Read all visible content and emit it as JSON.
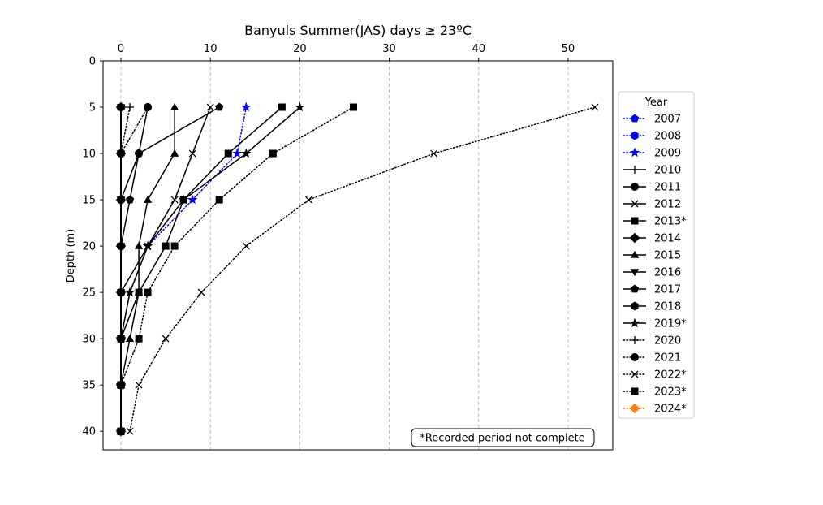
{
  "chart_data": {
    "type": "line",
    "title": "Banyuls Summer(JAS) days ≥ 23ºC",
    "xlabel": "",
    "ylabel": "Depth (m)",
    "xlim": [
      -2,
      55
    ],
    "ylim": [
      42,
      0
    ],
    "x_axis_position": "top",
    "y_inverted": true,
    "grid": "vertical dashed",
    "x_ticks": [
      0,
      10,
      20,
      30,
      40,
      50
    ],
    "y_ticks": [
      0,
      5,
      10,
      15,
      20,
      25,
      30,
      35,
      40
    ],
    "depths": [
      5,
      10,
      15,
      20,
      25,
      30,
      35,
      40
    ],
    "legend": {
      "title": "Year",
      "placement": "right-outside"
    },
    "annotation": "*Recorded period not complete",
    "series": [
      {
        "name": "2007",
        "color": "#0000ff",
        "dash": "dotted",
        "marker": "pentagon",
        "values": [
          0,
          0,
          0,
          0,
          0,
          0,
          0,
          0
        ]
      },
      {
        "name": "2008",
        "color": "#0000ff",
        "dash": "dotted",
        "marker": "hexagon",
        "values": [
          0,
          0,
          0,
          0,
          0,
          0,
          0,
          0
        ]
      },
      {
        "name": "2009",
        "color": "#0000ff",
        "dash": "dotted",
        "marker": "star",
        "values": [
          14,
          13,
          8,
          3,
          1,
          0,
          0,
          0
        ]
      },
      {
        "name": "2010",
        "color": "#000000",
        "dash": "solid",
        "marker": "plus",
        "values": [
          0,
          0,
          0,
          0,
          0,
          0,
          0,
          0
        ]
      },
      {
        "name": "2011",
        "color": "#000000",
        "dash": "solid",
        "marker": "circle",
        "values": [
          3,
          2,
          0,
          0,
          0,
          0,
          0,
          0
        ]
      },
      {
        "name": "2012",
        "color": "#000000",
        "dash": "solid",
        "marker": "x",
        "values": [
          10,
          8,
          6,
          3,
          0,
          0,
          0,
          0
        ]
      },
      {
        "name": "2013*",
        "color": "#000000",
        "dash": "solid",
        "marker": "square",
        "values": [
          18,
          12,
          7,
          5,
          2,
          0,
          0,
          0
        ]
      },
      {
        "name": "2014",
        "color": "#000000",
        "dash": "solid",
        "marker": "diamond",
        "values": [
          0,
          0,
          0,
          0,
          0,
          0,
          0,
          0
        ]
      },
      {
        "name": "2015",
        "color": "#000000",
        "dash": "solid",
        "marker": "triangle-up",
        "values": [
          6,
          6,
          3,
          2,
          2,
          1,
          0,
          0
        ]
      },
      {
        "name": "2016",
        "color": "#000000",
        "dash": "solid",
        "marker": "triangle-down",
        "values": [
          0,
          0,
          0,
          0,
          0,
          0,
          0,
          0
        ]
      },
      {
        "name": "2017",
        "color": "#000000",
        "dash": "solid",
        "marker": "pentagon",
        "values": [
          11,
          2,
          1,
          0,
          0,
          0,
          0,
          0
        ]
      },
      {
        "name": "2018",
        "color": "#000000",
        "dash": "solid",
        "marker": "hexagon",
        "values": [
          0,
          0,
          0,
          0,
          0,
          0,
          0,
          0
        ]
      },
      {
        "name": "2019*",
        "color": "#000000",
        "dash": "solid",
        "marker": "star",
        "values": [
          20,
          14,
          7,
          3,
          1,
          0,
          0,
          0
        ]
      },
      {
        "name": "2020",
        "color": "#000000",
        "dash": "dotted",
        "marker": "plus",
        "values": [
          1,
          0,
          0,
          0,
          0,
          0,
          0,
          0
        ]
      },
      {
        "name": "2021",
        "color": "#000000",
        "dash": "dotted",
        "marker": "circle",
        "values": [
          3,
          0,
          0,
          0,
          0,
          0,
          0,
          0
        ]
      },
      {
        "name": "2022*",
        "color": "#000000",
        "dash": "dotted",
        "marker": "x",
        "values": [
          53,
          35,
          21,
          14,
          9,
          5,
          2,
          1
        ]
      },
      {
        "name": "2023*",
        "color": "#000000",
        "dash": "dotted",
        "marker": "square",
        "values": [
          26,
          17,
          11,
          6,
          3,
          2,
          0,
          0
        ]
      },
      {
        "name": "2024*",
        "color": "#ff7f0e",
        "dash": "dotted",
        "marker": "diamond",
        "values": []
      }
    ]
  }
}
